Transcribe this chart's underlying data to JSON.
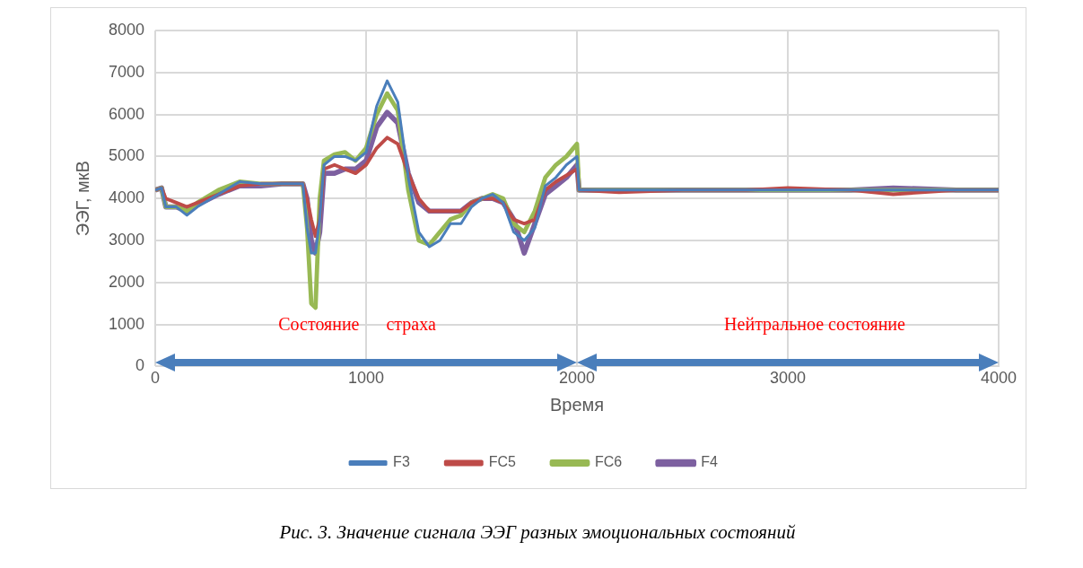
{
  "chart_data": {
    "type": "line",
    "xlabel": "Время",
    "ylabel": "ЭЭГ, мкВ",
    "xlim": [
      0,
      4000
    ],
    "xticks": [
      0,
      1000,
      2000,
      3000,
      4000
    ],
    "ylim": [
      0,
      8000
    ],
    "yticks": [
      0,
      1000,
      2000,
      3000,
      4000,
      5000,
      6000,
      7000,
      8000
    ],
    "grid": true,
    "legend": "bottom",
    "marker": "none",
    "line_style": "solid",
    "x": [
      0,
      30,
      50,
      100,
      150,
      200,
      300,
      400,
      500,
      600,
      700,
      720,
      740,
      760,
      780,
      800,
      850,
      900,
      950,
      1000,
      1050,
      1100,
      1150,
      1200,
      1250,
      1300,
      1350,
      1400,
      1450,
      1500,
      1550,
      1600,
      1650,
      1700,
      1750,
      1800,
      1850,
      1900,
      1950,
      2000,
      2010,
      2200,
      2500,
      2800,
      3000,
      3300,
      3500,
      3800,
      4000
    ],
    "series": [
      {
        "name": "F3",
        "color": "#4a7ebb",
        "values": [
          4200,
          4250,
          3800,
          3800,
          3600,
          3800,
          4100,
          4400,
          4350,
          4350,
          4350,
          3300,
          2700,
          2700,
          3500,
          4800,
          5000,
          5000,
          4900,
          5100,
          6200,
          6800,
          6300,
          4500,
          3200,
          2850,
          3000,
          3400,
          3400,
          3800,
          4000,
          4100,
          3900,
          3200,
          3000,
          3300,
          4300,
          4500,
          4800,
          5000,
          4200,
          4200,
          4200,
          4200,
          4200,
          4200,
          4200,
          4200,
          4200
        ]
      },
      {
        "name": "FC5",
        "color": "#be4b48",
        "values": [
          4200,
          4250,
          4000,
          3900,
          3800,
          3900,
          4100,
          4300,
          4350,
          4350,
          4350,
          4000,
          3500,
          3100,
          3500,
          4700,
          4800,
          4700,
          4600,
          4800,
          5200,
          5450,
          5300,
          4600,
          4000,
          3700,
          3700,
          3700,
          3700,
          3900,
          4000,
          4000,
          3900,
          3500,
          3400,
          3500,
          4200,
          4400,
          4550,
          4700,
          4200,
          4150,
          4200,
          4200,
          4250,
          4200,
          4100,
          4200,
          4200
        ]
      },
      {
        "name": "FC6",
        "color": "#98b954",
        "values": [
          4200,
          4250,
          3800,
          3800,
          3700,
          3900,
          4200,
          4400,
          4350,
          4350,
          4350,
          3300,
          1500,
          1400,
          4000,
          4900,
          5050,
          5100,
          4900,
          5200,
          6000,
          6500,
          6100,
          4200,
          3000,
          2900,
          3200,
          3500,
          3600,
          3900,
          4000,
          4100,
          4000,
          3400,
          3200,
          3700,
          4500,
          4800,
          5000,
          5300,
          4200,
          4200,
          4200,
          4200,
          4200,
          4200,
          4200,
          4200,
          4200
        ]
      },
      {
        "name": "F4",
        "color": "#7d60a0",
        "values": [
          4200,
          4250,
          3800,
          3800,
          3700,
          3850,
          4100,
          4300,
          4300,
          4350,
          4350,
          4000,
          3000,
          2700,
          3200,
          4600,
          4600,
          4700,
          4700,
          4900,
          5700,
          6050,
          5800,
          4600,
          3900,
          3700,
          3700,
          3700,
          3700,
          3900,
          4000,
          4000,
          3900,
          3500,
          2700,
          3400,
          4100,
          4300,
          4500,
          4800,
          4200,
          4200,
          4200,
          4200,
          4200,
          4200,
          4250,
          4200,
          4200
        ]
      }
    ],
    "annotations": [
      "Состояние      страха",
      "Нейтральное состояние",
      "Рис. 3. Значение сигнала ЭЭГ разных эмоциональных состояний"
    ]
  }
}
